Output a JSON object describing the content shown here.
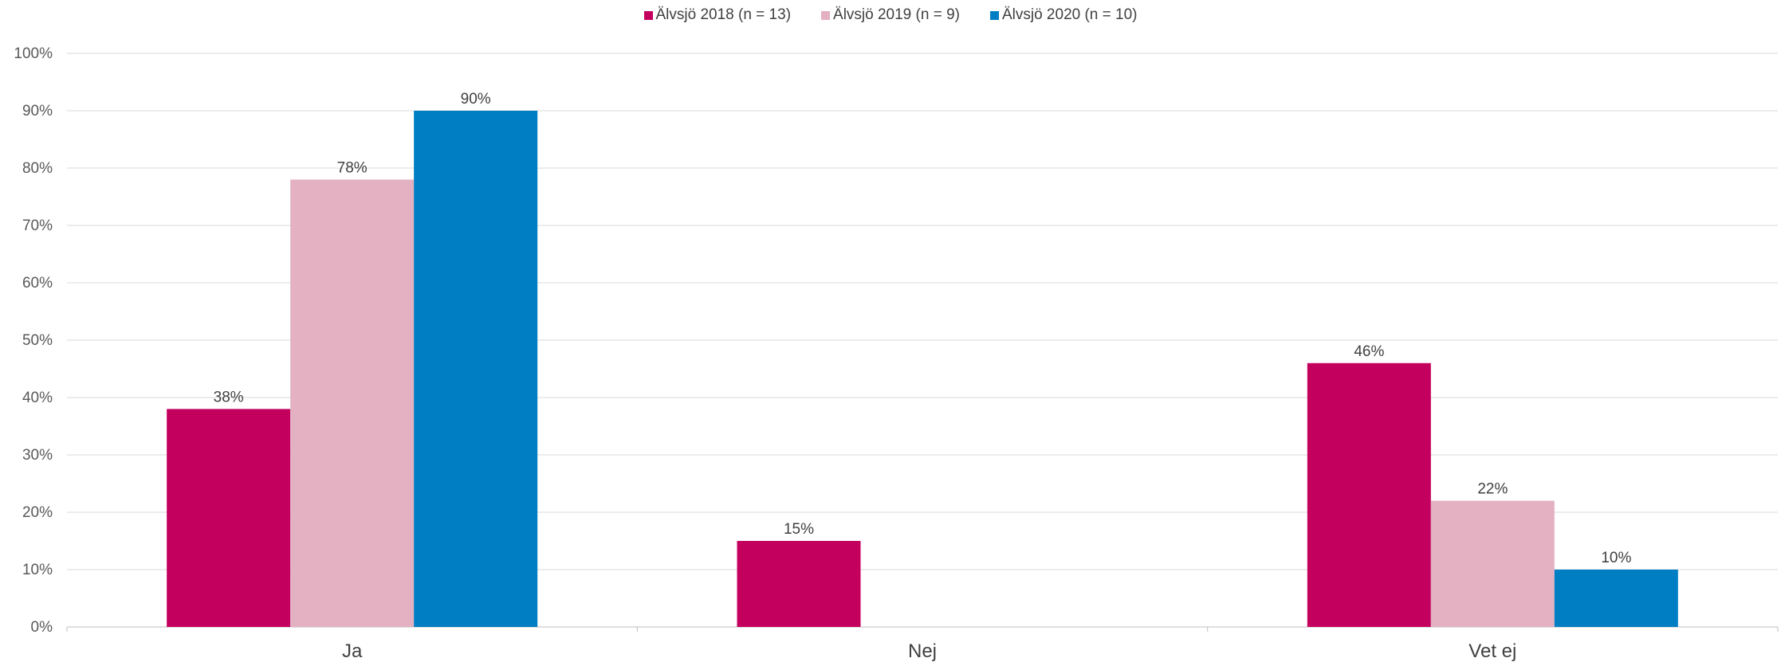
{
  "chart_data": {
    "type": "bar",
    "categories": [
      "Ja",
      "Nej",
      "Vet ej"
    ],
    "series": [
      {
        "name": "Älvsjö 2018 (n = 13)",
        "color": "#c4005f",
        "values": [
          38,
          15,
          46
        ],
        "labels": [
          "38%",
          "15%",
          "46%"
        ]
      },
      {
        "name": "Älvsjö 2019 (n = 9)",
        "color": "#e3b1c2",
        "values": [
          78,
          0,
          22
        ],
        "labels": [
          "78%",
          "",
          "22%"
        ]
      },
      {
        "name": "Älvsjö 2020 (n = 10)",
        "color": "#007ec4",
        "values": [
          90,
          0,
          10
        ],
        "labels": [
          "90%",
          "",
          "10%"
        ]
      }
    ],
    "yticks": [
      "0%",
      "10%",
      "20%",
      "30%",
      "40%",
      "50%",
      "60%",
      "70%",
      "80%",
      "90%",
      "100%"
    ],
    "ylim": [
      0,
      100
    ],
    "grid": true,
    "legend_position": "top-center"
  }
}
